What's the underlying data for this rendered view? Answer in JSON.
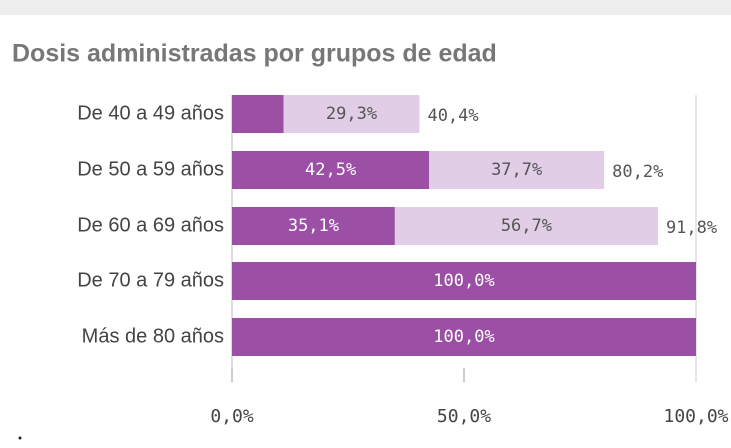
{
  "chart_data": {
    "type": "stacked-bar-horizontal",
    "title": "Dosis administradas por grupos de edad",
    "categories": [
      "De 40 a 49 años",
      "De 50 a 59 años",
      "De 60 a 69 años",
      "De 70 a 79 años",
      "Más de 80 años"
    ],
    "series": [
      {
        "color": "#9b4fa5",
        "values": [
          11.1,
          42.5,
          35.1,
          100.0,
          100.0
        ],
        "value_labels": [
          null,
          "42,5%",
          "35,1%",
          "100,0%",
          "100,0%"
        ]
      },
      {
        "color": "#e1cde6",
        "values": [
          29.3,
          37.7,
          56.7,
          null,
          null
        ],
        "value_labels": [
          "29,3%",
          "37,7%",
          "56,7%",
          null,
          null
        ]
      }
    ],
    "totals": {
      "values": [
        40.4,
        80.2,
        91.8,
        null,
        null
      ],
      "value_labels": [
        "40,4%",
        "80,2%",
        "91,8%",
        null,
        null
      ]
    },
    "xlim": [
      0,
      100
    ],
    "xticks": [
      {
        "value": 0,
        "label": "0,0%"
      },
      {
        "value": 50,
        "label": "50,0%"
      },
      {
        "value": 100,
        "label": "100,0%"
      }
    ]
  }
}
